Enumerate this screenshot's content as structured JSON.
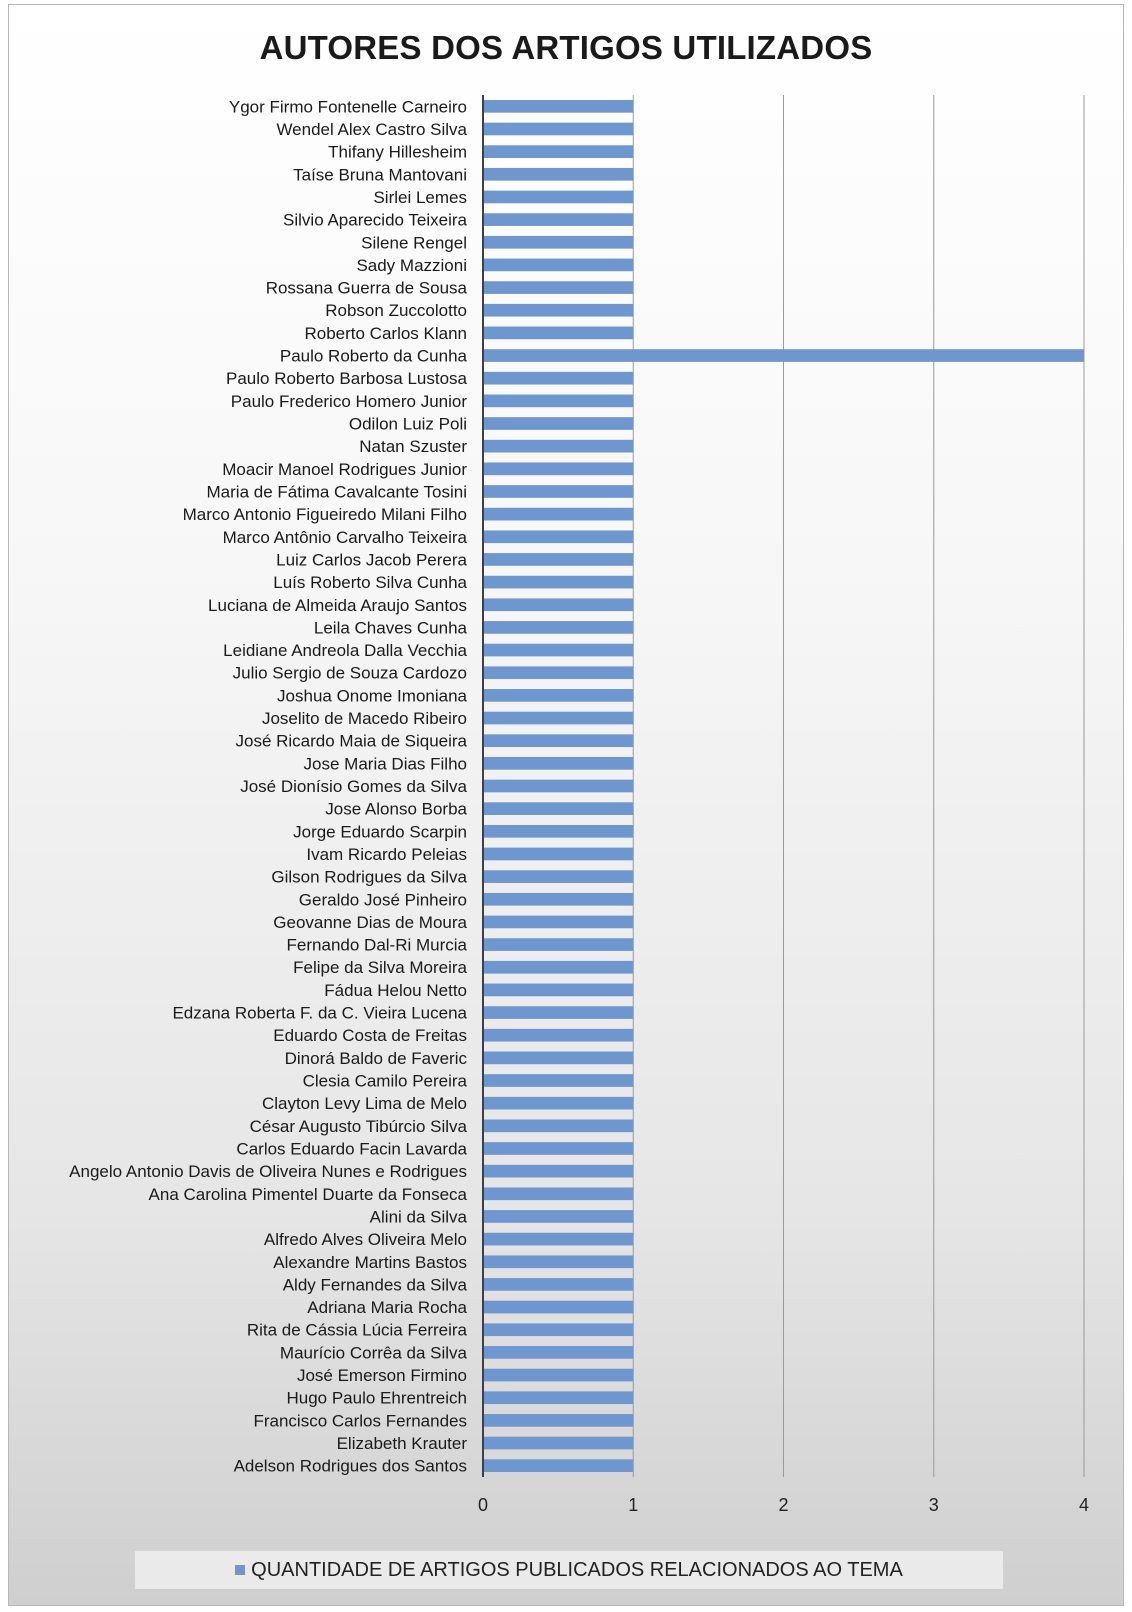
{
  "chart_data": {
    "type": "bar",
    "orientation": "horizontal",
    "title": "AUTORES DOS ARTIGOS UTILIZADOS",
    "xlabel": "",
    "ylabel": "",
    "xlim": [
      0,
      4
    ],
    "x_ticks": [
      "0",
      "1",
      "2",
      "3",
      "4"
    ],
    "grid": true,
    "legend_position": "bottom",
    "bar_color": "#6f97cf",
    "categories": [
      "Ygor Firmo Fontenelle Carneiro",
      "Wendel Alex Castro Silva",
      "Thifany Hillesheim",
      "Taíse Bruna Mantovani",
      "Sirlei Lemes",
      "Silvio Aparecido Teixeira",
      "Silene Rengel",
      "Sady Mazzioni",
      "Rossana Guerra de Sousa",
      "Robson Zuccolotto",
      "Roberto Carlos Klann",
      "Paulo Roberto da Cunha",
      "Paulo Roberto Barbosa Lustosa",
      "Paulo Frederico Homero Junior",
      "Odilon Luiz Poli",
      "Natan Szuster",
      "Moacir Manoel Rodrigues Junior",
      "Maria de Fátima Cavalcante Tosini",
      "Marco Antonio Figueiredo Milani Filho",
      "Marco Antônio Carvalho Teixeira",
      "Luiz Carlos Jacob Perera",
      "Luís Roberto Silva Cunha",
      "Luciana de Almeida Araujo Santos",
      "Leila Chaves Cunha",
      "Leidiane Andreola Dalla Vecchia",
      "Julio Sergio de Souza Cardozo",
      "Joshua Onome Imoniana",
      "Joselito de Macedo Ribeiro",
      "José Ricardo Maia de Siqueira",
      "Jose Maria Dias Filho",
      "José Dionísio Gomes da Silva",
      "Jose Alonso Borba",
      "Jorge Eduardo Scarpin",
      "Ivam Ricardo Peleias",
      "Gilson Rodrigues da Silva",
      "Geraldo José Pinheiro",
      "Geovanne Dias de Moura",
      "Fernando Dal-Ri Murcia",
      "Felipe da Silva Moreira",
      "Fádua Helou Netto",
      "Edzana Roberta F. da C. Vieira Lucena",
      "Eduardo Costa de Freitas",
      "Dinorá Baldo de Faveric",
      "Clesia Camilo Pereira",
      "Clayton Levy Lima de Melo",
      "César Augusto Tibúrcio Silva",
      "Carlos Eduardo Facin Lavarda",
      "Angelo Antonio Davis de Oliveira Nunes e Rodrigues",
      "Ana Carolina Pimentel Duarte da Fonseca",
      "Alini da Silva",
      "Alfredo Alves Oliveira Melo",
      "Alexandre Martins Bastos",
      "Aldy Fernandes da Silva",
      "Adriana Maria Rocha",
      "Rita de Cássia Lúcia Ferreira",
      "Maurício Corrêa da Silva",
      "José Emerson Firmino",
      "Hugo Paulo Ehrentreich",
      "Francisco Carlos Fernandes",
      "Elizabeth Krauter",
      "Adelson Rodrigues dos Santos"
    ],
    "series": [
      {
        "name": "QUANTIDADE DE ARTIGOS PUBLICADOS RELACIONADOS  AO TEMA",
        "values": [
          1,
          1,
          1,
          1,
          1,
          1,
          1,
          1,
          1,
          1,
          1,
          4,
          1,
          1,
          1,
          1,
          1,
          1,
          1,
          1,
          1,
          1,
          1,
          1,
          1,
          1,
          1,
          1,
          1,
          1,
          1,
          1,
          1,
          1,
          1,
          1,
          1,
          1,
          1,
          1,
          1,
          1,
          1,
          1,
          1,
          1,
          1,
          1,
          1,
          1,
          1,
          1,
          1,
          1,
          1,
          1,
          1,
          1,
          1,
          1,
          1
        ]
      }
    ]
  }
}
